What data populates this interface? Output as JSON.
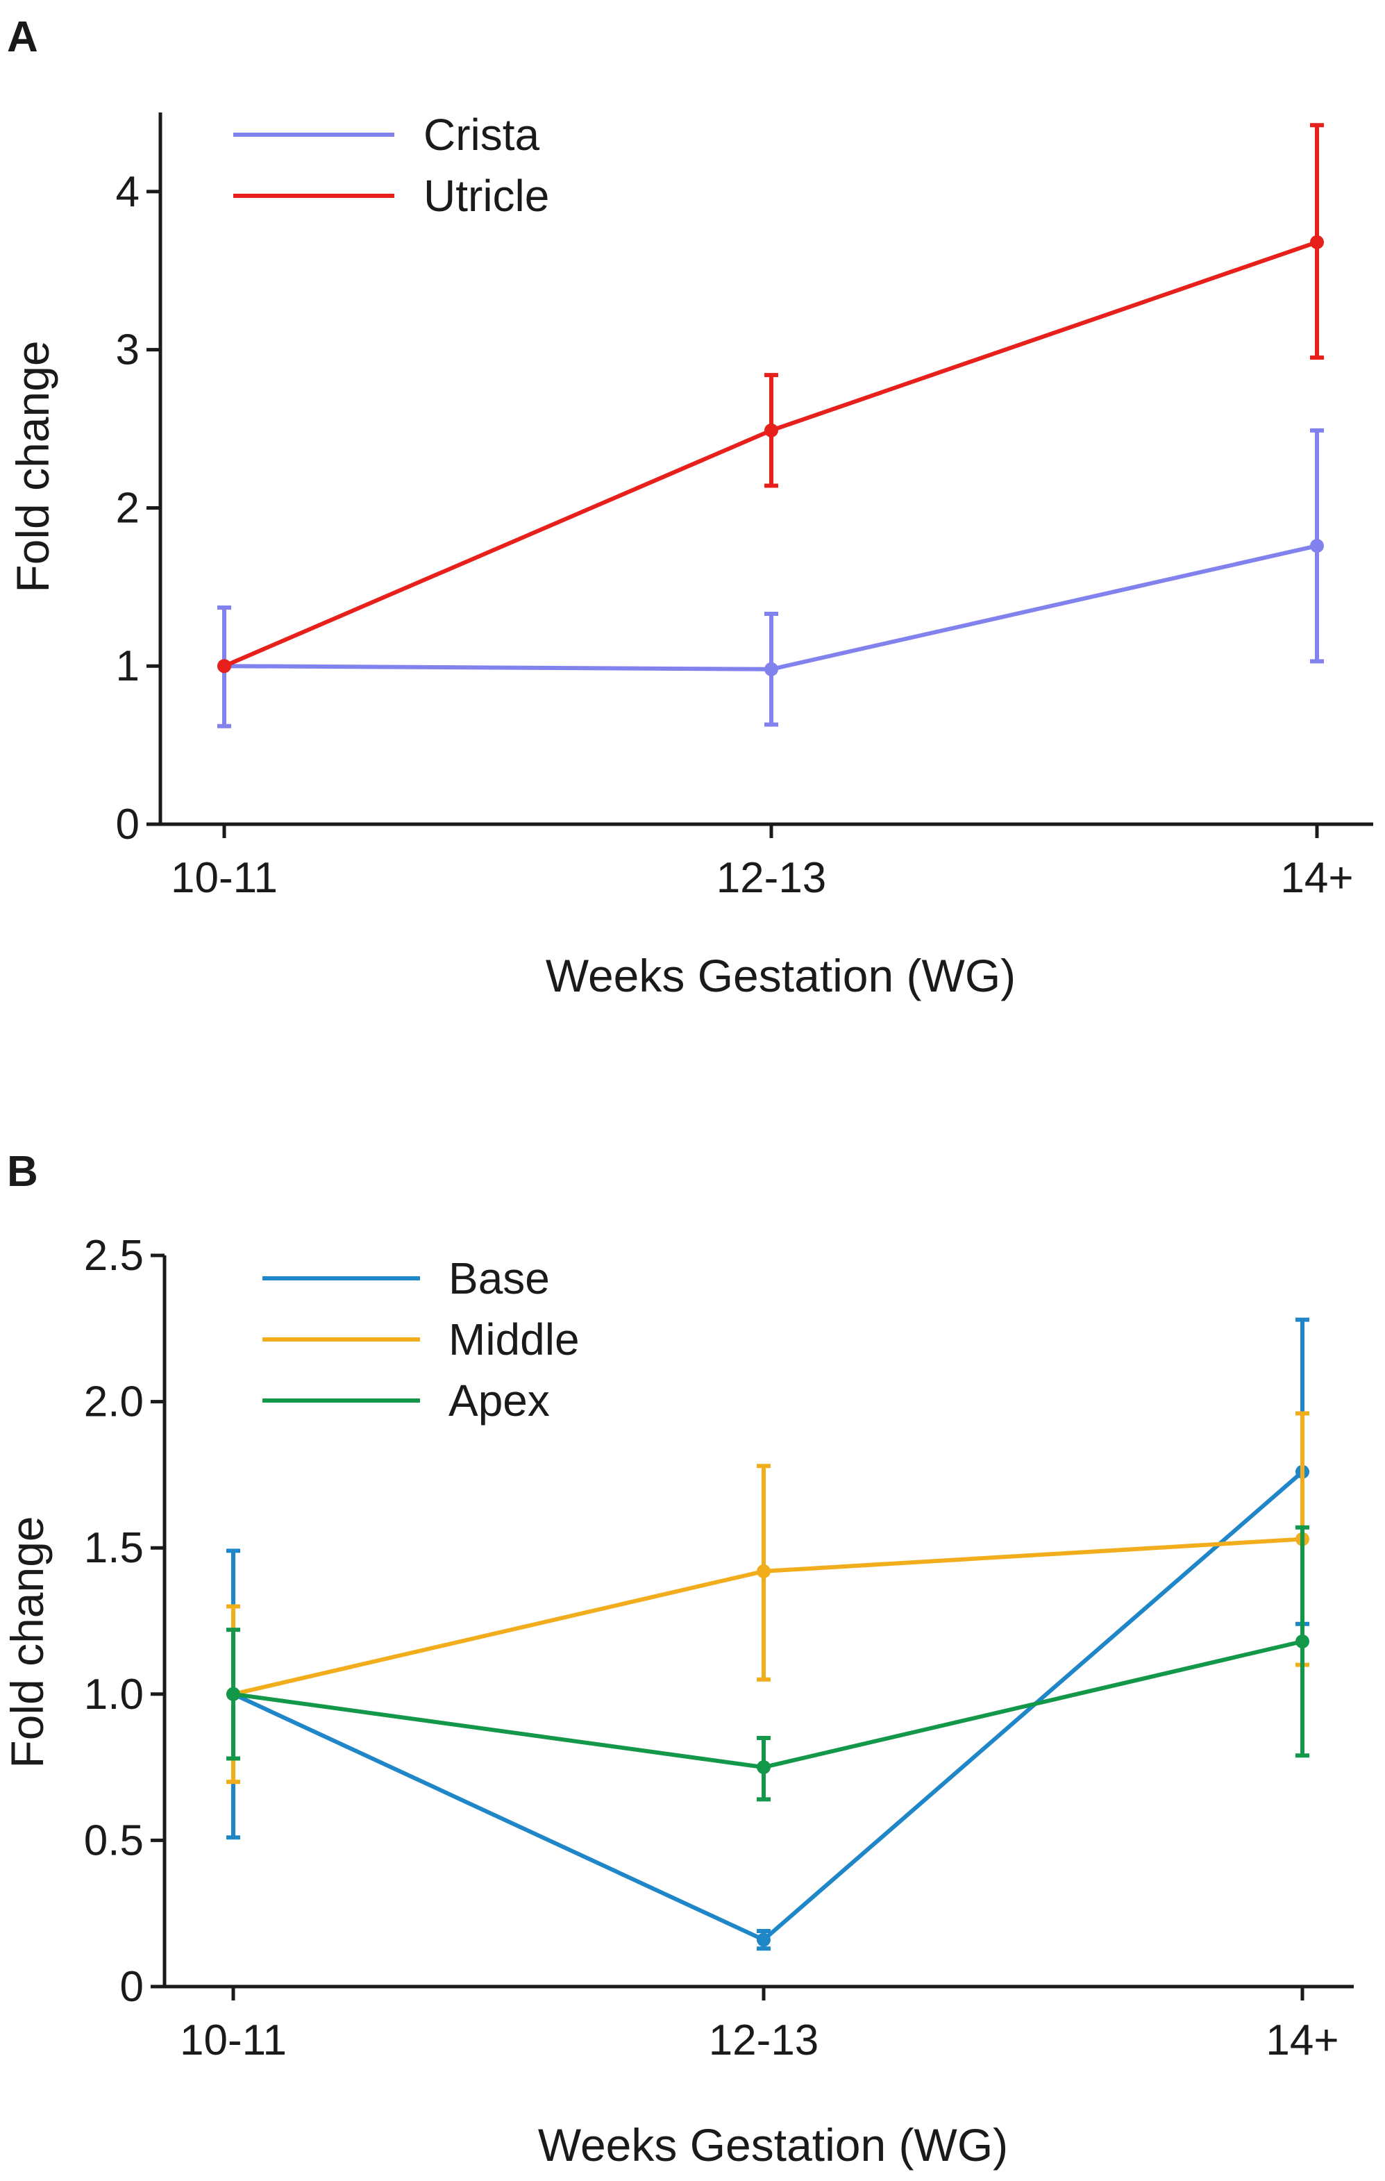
{
  "figure": {
    "panels": [
      "A",
      "B"
    ]
  },
  "chart_data": [
    {
      "panel": "A",
      "type": "line",
      "categories": [
        "10-11",
        "12-13",
        "14+"
      ],
      "xlabel": "Weeks Gestation (WG)",
      "ylabel": "Fold change",
      "ylim": [
        0,
        4.5
      ],
      "yticks": [
        0,
        1,
        2,
        3,
        4
      ],
      "ytick_labels": [
        "0",
        "1",
        "2",
        "3",
        "4"
      ],
      "legend_position": "top-left",
      "series": [
        {
          "name": "Crista",
          "color": "#8282ee",
          "values": [
            1.0,
            0.98,
            1.76
          ],
          "lower": [
            0.62,
            0.63,
            1.03
          ],
          "upper": [
            1.37,
            1.33,
            2.49
          ]
        },
        {
          "name": "Utricle",
          "color": "#e8201c",
          "values": [
            1.0,
            2.49,
            3.68
          ],
          "lower": [
            1.0,
            2.14,
            2.95
          ],
          "upper": [
            1.0,
            2.84,
            4.42
          ]
        }
      ]
    },
    {
      "panel": "B",
      "type": "line",
      "categories": [
        "10-11",
        "12-13",
        "14+"
      ],
      "xlabel": "Weeks Gestation (WG)",
      "ylabel": "Fold change",
      "ylim": [
        0,
        2.5
      ],
      "yticks": [
        0,
        0.5,
        1.0,
        1.5,
        2.0,
        2.5
      ],
      "ytick_labels": [
        "0",
        "0.5",
        "1.0",
        "1.5",
        "2.0",
        "2.5"
      ],
      "legend_position": "top-left",
      "series": [
        {
          "name": "Base",
          "color": "#1f86c8",
          "values": [
            1.0,
            0.16,
            1.76
          ],
          "lower": [
            0.51,
            0.13,
            1.24
          ],
          "upper": [
            1.49,
            0.19,
            2.28
          ]
        },
        {
          "name": "Middle",
          "color": "#f2ad1c",
          "values": [
            1.0,
            1.42,
            1.53
          ],
          "lower": [
            0.7,
            1.05,
            1.1
          ],
          "upper": [
            1.3,
            1.78,
            1.96
          ]
        },
        {
          "name": "Apex",
          "color": "#13984a",
          "values": [
            1.0,
            0.75,
            1.18
          ],
          "lower": [
            0.78,
            0.64,
            0.79
          ],
          "upper": [
            1.22,
            0.85,
            1.57
          ]
        }
      ]
    }
  ]
}
